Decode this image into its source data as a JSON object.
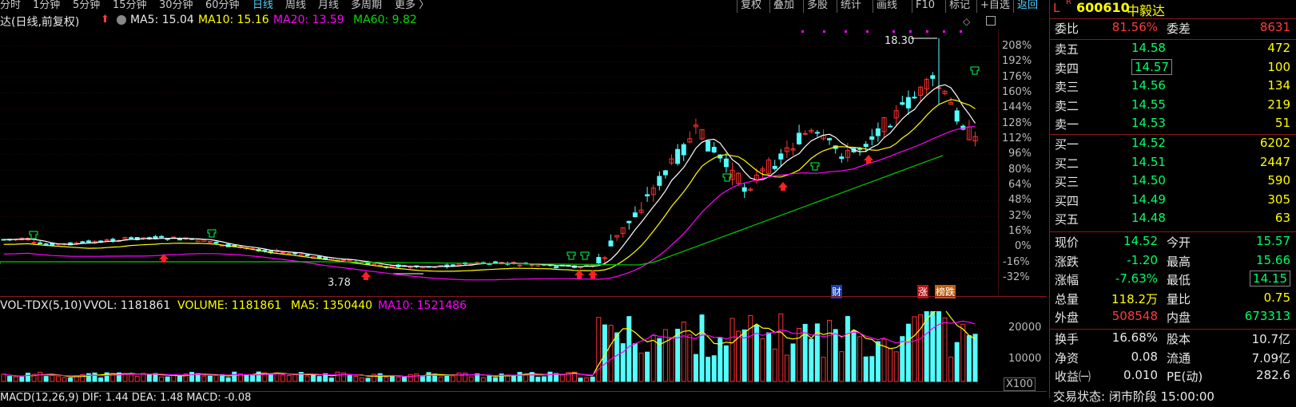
{
  "toolbar": {
    "periods": [
      "分时",
      "1分钟",
      "5分钟",
      "15分钟",
      "30分钟",
      "60分钟",
      "日线",
      "周线",
      "月线",
      "多周期",
      "更多 〉"
    ],
    "active_period": "日线",
    "tools": [
      "复权",
      "叠加",
      "多股",
      "统计",
      "画线",
      "F10",
      "标记",
      "+自选",
      "返回"
    ]
  },
  "main_chart": {
    "title": "达(日线,前复权)",
    "ma5_label": "MA5: 15.04",
    "ma10_label": "MA10: 15.16",
    "ma20_label": "MA20: 13.59",
    "ma60_label": "MA60: 9.82",
    "high_label": "18.30",
    "low_label": "3.78",
    "pct_ticks": [
      "208%",
      "192%",
      "176%",
      "160%",
      "144%",
      "128%",
      "112%",
      "96%",
      "80%",
      "64%",
      "48%",
      "32%",
      "16%",
      "0%",
      "-16%",
      "-32%"
    ],
    "event_cai": "财",
    "event_zhang": "涨",
    "event_bang": "榜跌"
  },
  "volume_chart": {
    "title": "VOL-TDX(5,10)",
    "vvol_label": "VVOL: 1181861",
    "volume_label": "VOLUME: 1181861",
    "ma5_label": "MA5: 1350440",
    "ma10_label": "MA10: 1521486",
    "ticks": [
      "20000",
      "10000"
    ],
    "unit": "X100"
  },
  "macd_label": "MACD(12,26,9) DIF: 1.44 DEA: 1.48 MACD: -0.08",
  "colors": {
    "up": "#ff3232",
    "down": "#54ffff",
    "ma5": "#ffffff",
    "ma10": "#ffff00",
    "ma20": "#ff00ff",
    "ma60": "#00cc00"
  },
  "chart_data": {
    "type": "candlestick",
    "y_axis": "percent change",
    "ma_series": [
      {
        "name": "MA5",
        "last": 15.04
      },
      {
        "name": "MA10",
        "last": 15.16
      },
      {
        "name": "MA20",
        "last": 13.59
      },
      {
        "name": "MA60",
        "last": 9.82
      }
    ],
    "high": 18.3,
    "low": 3.78
  },
  "quote": {
    "code": "600610",
    "name": "中毅达",
    "flag_l": "L",
    "flag_r": "R",
    "ratio_label": "委比",
    "ratio": "81.56%",
    "diff_label": "委差",
    "diff": "8631",
    "sells": [
      {
        "label": "卖五",
        "price": "14.58",
        "vol": "472"
      },
      {
        "label": "卖四",
        "price": "14.57",
        "vol": "100"
      },
      {
        "label": "卖三",
        "price": "14.56",
        "vol": "134"
      },
      {
        "label": "卖二",
        "price": "14.55",
        "vol": "219"
      },
      {
        "label": "卖一",
        "price": "14.53",
        "vol": "51"
      }
    ],
    "buys": [
      {
        "label": "买一",
        "price": "14.52",
        "vol": "6202"
      },
      {
        "label": "买二",
        "price": "14.51",
        "vol": "2447"
      },
      {
        "label": "买三",
        "price": "14.50",
        "vol": "590"
      },
      {
        "label": "买四",
        "price": "14.49",
        "vol": "305"
      },
      {
        "label": "买五",
        "price": "14.48",
        "vol": "63"
      }
    ],
    "stats": [
      {
        "l1": "现价",
        "v1": "14.52",
        "c1": "grn",
        "l2": "今开",
        "v2": "15.57",
        "c2": "grn"
      },
      {
        "l1": "涨跌",
        "v1": "-1.20",
        "c1": "grn",
        "l2": "最高",
        "v2": "15.66",
        "c2": "grn"
      },
      {
        "l1": "涨幅",
        "v1": "-7.63%",
        "c1": "grn",
        "l2": "最低",
        "v2": "14.15",
        "c2": "grn"
      },
      {
        "l1": "总量",
        "v1": "118.2万",
        "c1": "yel",
        "l2": "量比",
        "v2": "0.75",
        "c2": "yel"
      },
      {
        "l1": "外盘",
        "v1": "508548",
        "c1": "red",
        "l2": "内盘",
        "v2": "673313",
        "c2": "grn"
      }
    ],
    "stats2": [
      {
        "l1": "换手",
        "v1": "16.68%",
        "l2": "股本",
        "v2": "10.7亿"
      },
      {
        "l1": "净资",
        "v1": "0.08",
        "l2": "流通",
        "v2": "7.09亿"
      },
      {
        "l1": "收益㈠",
        "v1": "0.010",
        "l2": "PE(动)",
        "v2": "282.6"
      }
    ],
    "footer": "交易状态: 闭市阶段 15:00:00"
  }
}
